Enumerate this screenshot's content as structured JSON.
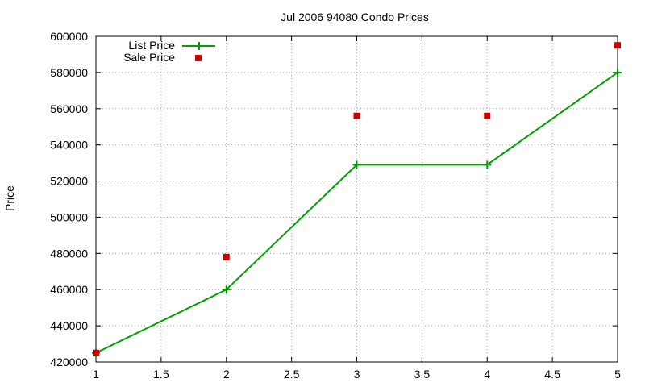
{
  "chart_data": {
    "type": "line",
    "title": "Jul 2006 94080 Condo Prices",
    "xlabel": "",
    "ylabel": "Price",
    "xlim": [
      1,
      5
    ],
    "ylim": [
      420000,
      600000
    ],
    "xticks": [
      "1",
      "1.5",
      "2",
      "2.5",
      "3",
      "3.5",
      "4",
      "4.5",
      "5"
    ],
    "yticks": [
      "420000",
      "440000",
      "460000",
      "480000",
      "500000",
      "520000",
      "540000",
      "560000",
      "580000",
      "600000"
    ],
    "grid": true,
    "legend_position": "top-left",
    "series": [
      {
        "name": "List Price",
        "style": "line-with-plus-markers",
        "color": "#00a000",
        "x": [
          1,
          2,
          3,
          4,
          5
        ],
        "y": [
          425000,
          460000,
          529000,
          529000,
          580000
        ]
      },
      {
        "name": "Sale Price",
        "style": "square-markers",
        "color": "#cc0000",
        "x": [
          1,
          2,
          3,
          4,
          5
        ],
        "y": [
          425000,
          478000,
          556000,
          556000,
          595000
        ]
      }
    ]
  }
}
